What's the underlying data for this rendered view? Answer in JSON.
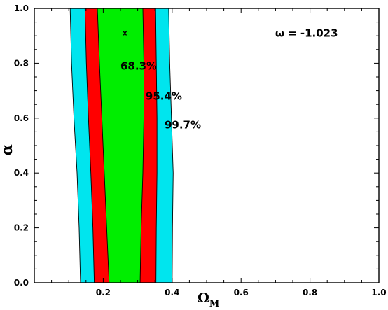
{
  "chart_data": {
    "type": "contour",
    "title": "",
    "xlabel": "Ω",
    "xlabel_sub": "M",
    "ylabel": "α",
    "xlim": [
      0.0,
      1.0
    ],
    "ylim": [
      0.0,
      1.0
    ],
    "x_ticks": [
      {
        "value": 0.2,
        "label": "0.2"
      },
      {
        "value": 0.4,
        "label": "0.4"
      },
      {
        "value": 0.6,
        "label": "0.6"
      },
      {
        "value": 0.8,
        "label": "0.8"
      },
      {
        "value": 1.0,
        "label": "1.0"
      }
    ],
    "y_ticks": [
      {
        "value": 0.0,
        "label": "0.0"
      },
      {
        "value": 0.2,
        "label": "0.2"
      },
      {
        "value": 0.4,
        "label": "0.4"
      },
      {
        "value": 0.6,
        "label": "0.6"
      },
      {
        "value": 0.8,
        "label": "0.8"
      },
      {
        "value": 1.0,
        "label": "1.0"
      }
    ],
    "grid": false,
    "regions": [
      {
        "label": "99.7%",
        "color": "#00e5ee",
        "label_at": [
          0.378,
          0.575
        ],
        "left": [
          [
            0.134,
            0.0
          ],
          [
            0.13,
            0.2
          ],
          [
            0.124,
            0.4
          ],
          [
            0.115,
            0.6
          ],
          [
            0.108,
            0.8
          ],
          [
            0.104,
            1.0
          ]
        ],
        "right": [
          [
            0.4,
            0.0
          ],
          [
            0.401,
            0.2
          ],
          [
            0.403,
            0.4
          ],
          [
            0.398,
            0.6
          ],
          [
            0.393,
            0.8
          ],
          [
            0.39,
            1.0
          ]
        ]
      },
      {
        "label": "95.4%",
        "color": "#ff0000",
        "label_at": [
          0.323,
          0.68
        ],
        "left": [
          [
            0.174,
            0.0
          ],
          [
            0.17,
            0.2
          ],
          [
            0.164,
            0.4
          ],
          [
            0.157,
            0.6
          ],
          [
            0.151,
            0.8
          ],
          [
            0.147,
            1.0
          ]
        ],
        "right": [
          [
            0.353,
            0.0
          ],
          [
            0.354,
            0.2
          ],
          [
            0.356,
            0.4
          ],
          [
            0.356,
            0.6
          ],
          [
            0.354,
            0.8
          ],
          [
            0.352,
            1.0
          ]
        ]
      },
      {
        "label": "68.3%",
        "color": "#00ee00",
        "label_at": [
          0.25,
          0.79
        ],
        "left": [
          [
            0.217,
            0.0
          ],
          [
            0.21,
            0.2
          ],
          [
            0.203,
            0.4
          ],
          [
            0.196,
            0.6
          ],
          [
            0.189,
            0.8
          ],
          [
            0.183,
            1.0
          ]
        ],
        "right": [
          [
            0.307,
            0.0
          ],
          [
            0.31,
            0.2
          ],
          [
            0.315,
            0.4
          ],
          [
            0.318,
            0.6
          ],
          [
            0.318,
            0.8
          ],
          [
            0.315,
            1.0
          ]
        ]
      }
    ],
    "best_fit": {
      "x": 0.263,
      "y": 0.91,
      "label": "x"
    },
    "annotation": {
      "text": "ω = -1.023",
      "x": 0.79,
      "y": 0.91
    }
  }
}
